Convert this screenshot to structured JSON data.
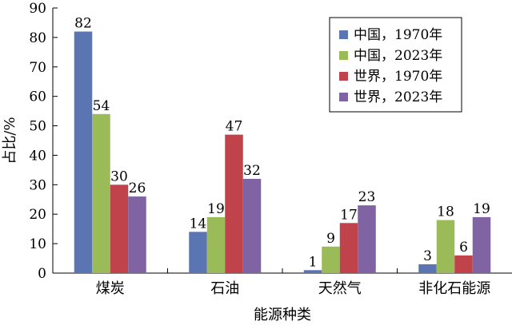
{
  "chart_data": {
    "type": "bar",
    "categories": [
      "煤炭",
      "石油",
      "天然气",
      "非化石能源"
    ],
    "series": [
      {
        "name": "中国，1970年",
        "color": "#5b74b2",
        "values": [
          82,
          14,
          1,
          3
        ]
      },
      {
        "name": "中国，2023年",
        "color": "#9bbb59",
        "values": [
          54,
          19,
          9,
          18
        ]
      },
      {
        "name": "世界，1970年",
        "color": "#c0424a",
        "values": [
          30,
          47,
          17,
          6
        ]
      },
      {
        "name": "世界，2023年",
        "color": "#7f63a2",
        "values": [
          26,
          32,
          23,
          19
        ]
      }
    ],
    "xlabel": "能源种类",
    "ylabel": "占比/%",
    "ylim": [
      0,
      90
    ],
    "yticks": [
      0,
      10,
      20,
      30,
      40,
      50,
      60,
      70,
      80,
      90
    ],
    "grid": false,
    "legend_position": "top-right",
    "data_labels": true
  }
}
